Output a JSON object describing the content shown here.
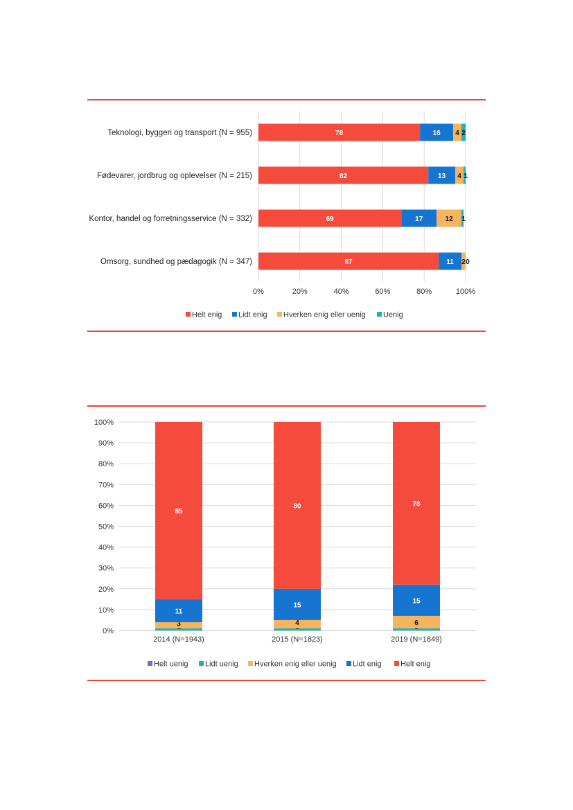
{
  "chart_data": [
    {
      "type": "bar",
      "orientation": "horizontal",
      "stacked": true,
      "categories": [
        "Teknologi, byggeri og transport (N = 955)",
        "Fødevarer, jordbrug og oplevelser (N = 215)",
        "Kontor, handel og forretningsservice (N = 332)",
        "Omsorg, sundhed og pædagogik (N = 347)"
      ],
      "series": [
        {
          "name": "Helt enig",
          "color": "#f44b3c",
          "values": [
            78,
            82,
            69,
            87
          ]
        },
        {
          "name": "Lidt enig",
          "color": "#1675d1",
          "values": [
            16,
            13,
            17,
            11
          ]
        },
        {
          "name": "Hverken enig eller uenig",
          "color": "#f7b45e",
          "values": [
            4,
            4,
            12,
            2
          ]
        },
        {
          "name": "Uenig",
          "color": "#17b3c0",
          "values": [
            2,
            1,
            1,
            0
          ]
        }
      ],
      "xlim": [
        0,
        100
      ],
      "xticks": [
        "0%",
        "20%",
        "40%",
        "60%",
        "80%",
        "100%"
      ],
      "grid": "vertical",
      "legend": "bottom"
    },
    {
      "type": "bar",
      "orientation": "vertical",
      "stacked": true,
      "categories": [
        "2014 (N=1943)",
        "2015 (N=1823)",
        "2019 (N=1849)"
      ],
      "series": [
        {
          "name": "Helt uenig",
          "color": "#7b68c8",
          "values": [
            0,
            0,
            0
          ]
        },
        {
          "name": "Lidt uenig",
          "color": "#17b3c0",
          "values": [
            1,
            1,
            1
          ]
        },
        {
          "name": "Hverken enig eller uenig",
          "color": "#f7b45e",
          "values": [
            3,
            4,
            6
          ]
        },
        {
          "name": "Lidt enig",
          "color": "#1675d1",
          "values": [
            11,
            15,
            15
          ]
        },
        {
          "name": "Helt enig",
          "color": "#f44b3c",
          "values": [
            85,
            80,
            78
          ]
        }
      ],
      "ylim": [
        0,
        100
      ],
      "yticks": [
        "0%",
        "10%",
        "20%",
        "30%",
        "40%",
        "50%",
        "60%",
        "70%",
        "80%",
        "90%",
        "100%"
      ],
      "grid": "horizontal",
      "legend": "bottom"
    }
  ]
}
